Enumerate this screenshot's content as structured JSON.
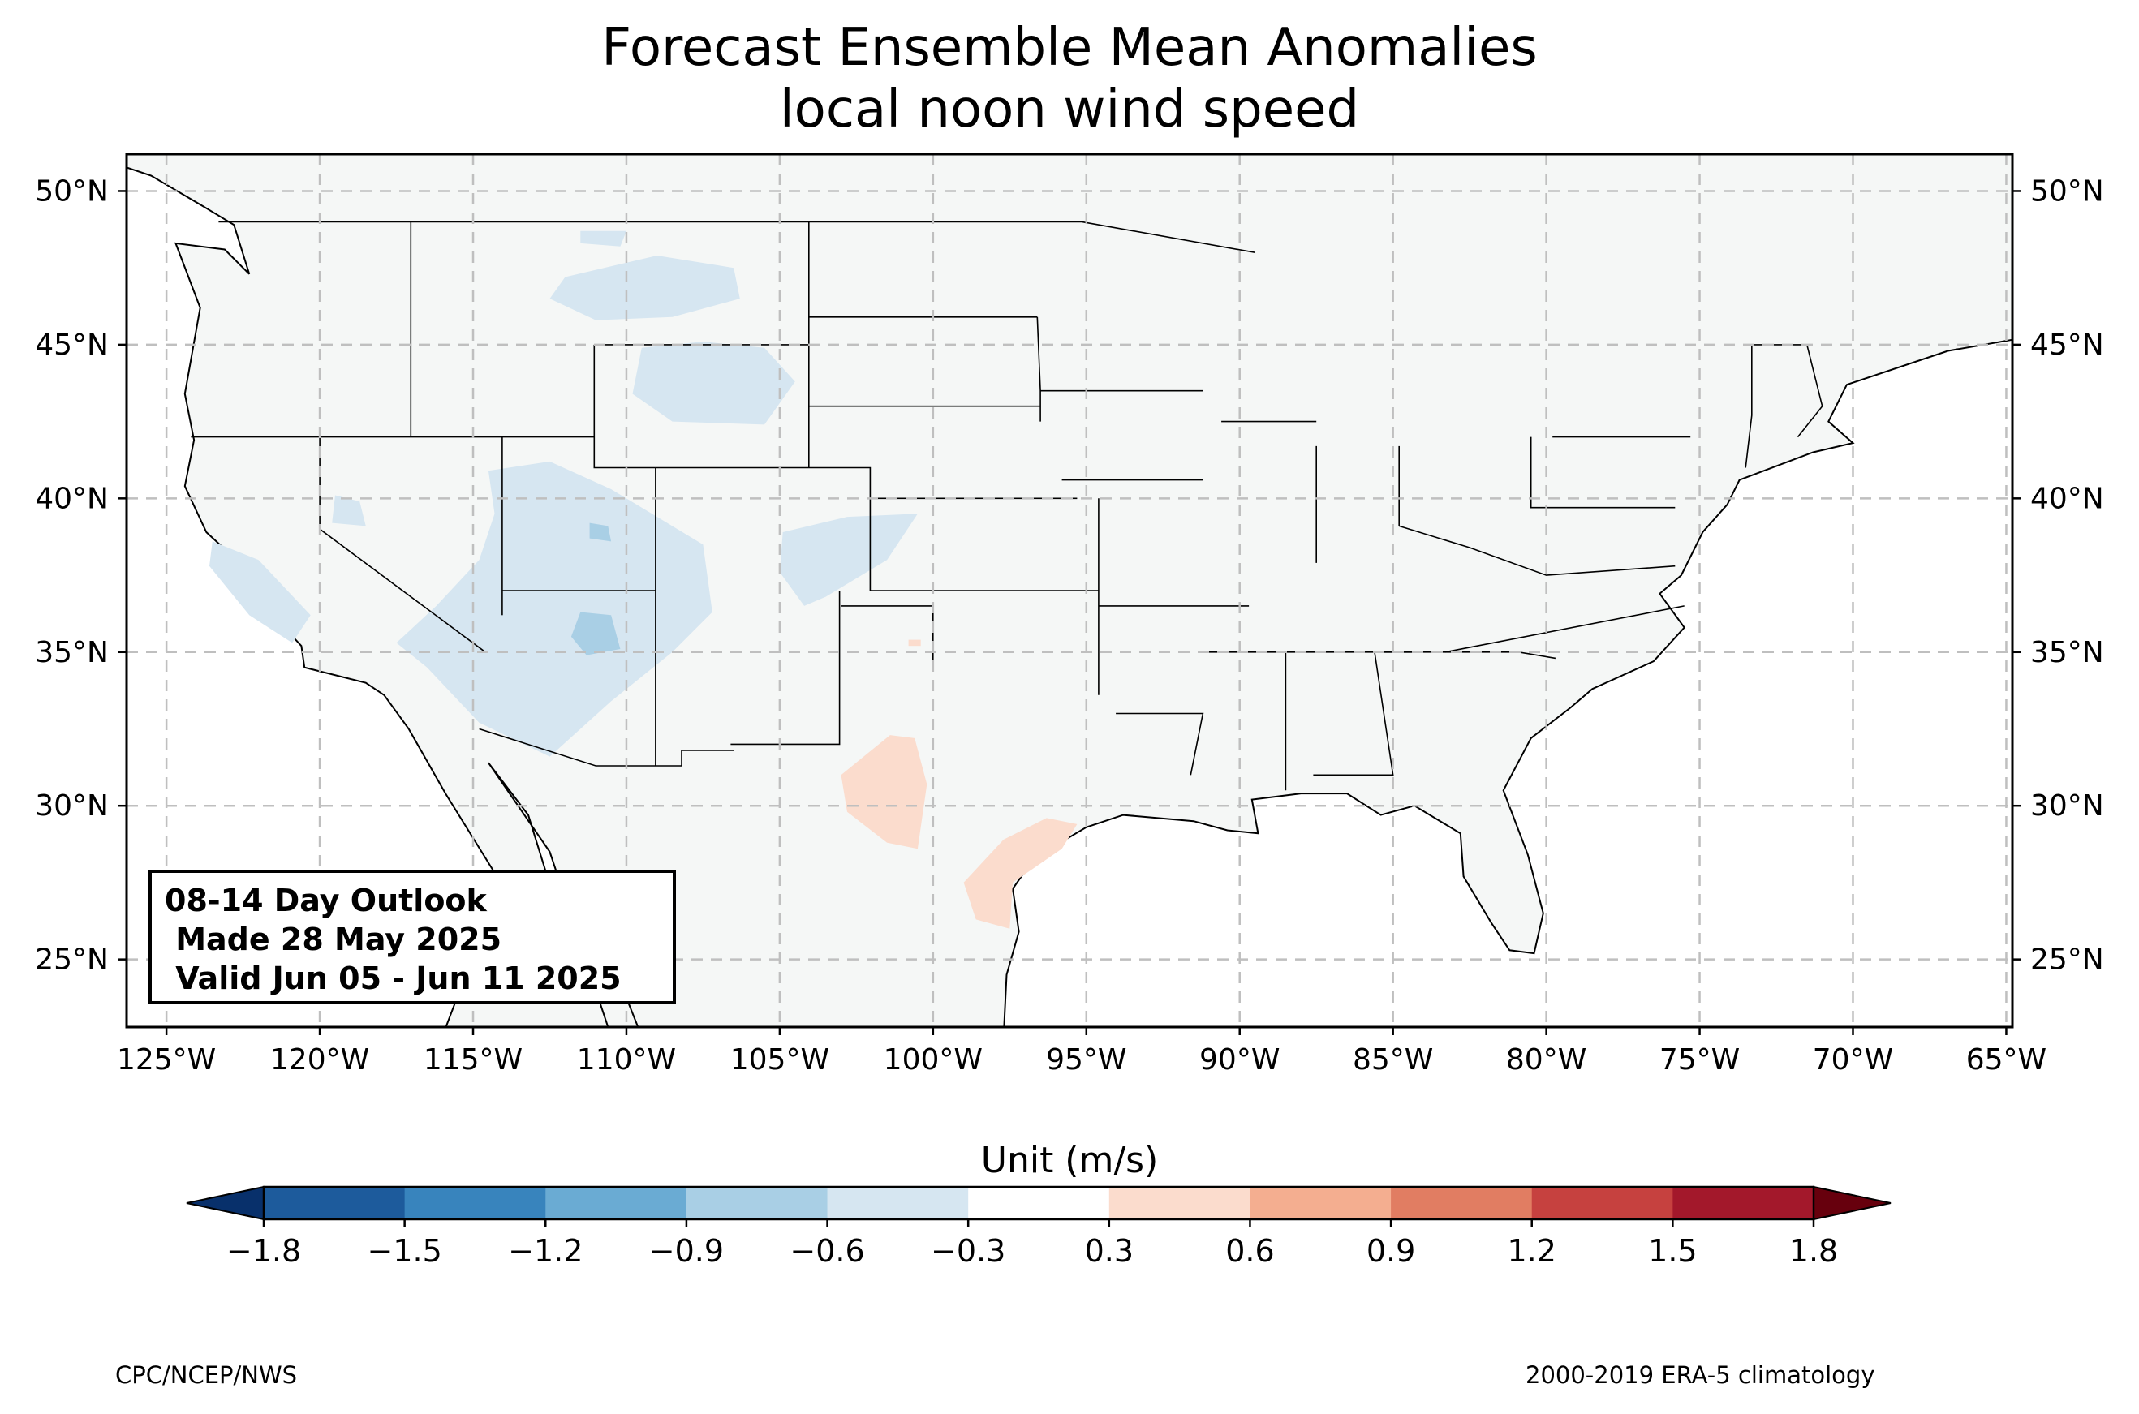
{
  "title": {
    "line1": "Forecast Ensemble Mean Anomalies",
    "line2": "local noon wind speed"
  },
  "map": {
    "projection": "plate-carree",
    "lon_range": [
      -126.3,
      -64.8
    ],
    "lat_range": [
      22.8,
      51.2
    ],
    "grid": "dashed",
    "lon_ticks": [
      {
        "value": -125,
        "label": "125°W"
      },
      {
        "value": -120,
        "label": "120°W"
      },
      {
        "value": -115,
        "label": "115°W"
      },
      {
        "value": -110,
        "label": "110°W"
      },
      {
        "value": -105,
        "label": "105°W"
      },
      {
        "value": -100,
        "label": "100°W"
      },
      {
        "value": -95,
        "label": "95°W"
      },
      {
        "value": -90,
        "label": "90°W"
      },
      {
        "value": -85,
        "label": "85°W"
      },
      {
        "value": -80,
        "label": "80°W"
      },
      {
        "value": -75,
        "label": "75°W"
      },
      {
        "value": -70,
        "label": "70°W"
      },
      {
        "value": -65,
        "label": "65°W"
      }
    ],
    "lat_ticks": [
      {
        "value": 50,
        "label": "50°N"
      },
      {
        "value": 45,
        "label": "45°N"
      },
      {
        "value": 40,
        "label": "40°N"
      },
      {
        "value": 35,
        "label": "35°N"
      },
      {
        "value": 30,
        "label": "30°N"
      },
      {
        "value": 25,
        "label": "25°N"
      }
    ],
    "land_color": "#f5f7f6",
    "ocean_color": "#ffffff",
    "anomaly_regions": [
      {
        "name": "Northern Rockies",
        "bin": "-0.6 to -0.3",
        "color": "#d6e6f1",
        "outline": [
          [
            -112,
            47.2
          ],
          [
            -109,
            47.9
          ],
          [
            -106.5,
            47.5
          ],
          [
            -106.3,
            46.5
          ],
          [
            -108.5,
            45.9
          ],
          [
            -111,
            45.8
          ],
          [
            -112.5,
            46.5
          ]
        ]
      },
      {
        "name": "Montana (north)",
        "bin": "-0.6 to -0.3",
        "color": "#d6e6f1",
        "outline": [
          [
            -111.5,
            48.7
          ],
          [
            -110,
            48.7
          ],
          [
            -110.2,
            48.2
          ],
          [
            -111.5,
            48.3
          ]
        ]
      },
      {
        "name": "Wyoming",
        "bin": "-0.6 to -0.3",
        "color": "#d6e6f1",
        "outline": [
          [
            -109.5,
            44.9
          ],
          [
            -107.5,
            45.1
          ],
          [
            -105.5,
            44.9
          ],
          [
            -104.5,
            43.8
          ],
          [
            -105.5,
            42.4
          ],
          [
            -108.5,
            42.5
          ],
          [
            -109.8,
            43.4
          ]
        ]
      },
      {
        "name": "Great Basin / Four Corners",
        "bin": "-0.6 to -0.3",
        "color": "#d6e6f1",
        "outline": [
          [
            -114.5,
            40.9
          ],
          [
            -112.5,
            41.2
          ],
          [
            -110.5,
            40.3
          ],
          [
            -107.5,
            38.5
          ],
          [
            -107.2,
            36.3
          ],
          [
            -108.5,
            35
          ],
          [
            -110.5,
            33.4
          ],
          [
            -112.5,
            31.6
          ],
          [
            -114.8,
            32.7
          ],
          [
            -116.5,
            34.5
          ],
          [
            -117.5,
            35.3
          ],
          [
            -116.2,
            36.5
          ],
          [
            -114.8,
            38
          ],
          [
            -114.3,
            39.5
          ]
        ]
      },
      {
        "name": "California coast",
        "bin": "-0.6 to -0.3",
        "color": "#d6e6f1",
        "outline": [
          [
            -123.5,
            38.6
          ],
          [
            -122,
            38
          ],
          [
            -120.3,
            36.2
          ],
          [
            -120.9,
            35.3
          ],
          [
            -122.3,
            36.2
          ],
          [
            -123.6,
            37.8
          ]
        ]
      },
      {
        "name": "Nevada west",
        "bin": "-0.6 to -0.3",
        "color": "#d6e6f1",
        "outline": [
          [
            -119.5,
            40.1
          ],
          [
            -118.7,
            39.9
          ],
          [
            -118.5,
            39.1
          ],
          [
            -119.6,
            39.2
          ]
        ]
      },
      {
        "name": "SE Colorado / NE New Mexico",
        "bin": "-0.6 to -0.3",
        "color": "#d6e6f1",
        "outline": [
          [
            -104.9,
            38.9
          ],
          [
            -102.8,
            39.4
          ],
          [
            -100.5,
            39.5
          ],
          [
            -101.5,
            38
          ],
          [
            -103.5,
            36.8
          ],
          [
            -104.2,
            36.5
          ],
          [
            -105,
            37.6
          ]
        ]
      },
      {
        "name": "Utah / Arizona core",
        "bin": "-0.9 to -0.6",
        "color": "#a9cfe5",
        "outline": [
          [
            -111.5,
            36.3
          ],
          [
            -110.5,
            36.2
          ],
          [
            -110.2,
            35.1
          ],
          [
            -111.3,
            34.9
          ],
          [
            -111.8,
            35.5
          ]
        ]
      },
      {
        "name": "Utah central",
        "bin": "-0.9 to -0.6",
        "color": "#a9cfe5",
        "outline": [
          [
            -111.2,
            39.2
          ],
          [
            -110.6,
            39.1
          ],
          [
            -110.5,
            38.6
          ],
          [
            -111.2,
            38.7
          ]
        ]
      },
      {
        "name": "West Texas",
        "bin": "0.3 to 0.6",
        "color": "#fbdccd",
        "outline": [
          [
            -101.4,
            32.3
          ],
          [
            -100.6,
            32.2
          ],
          [
            -100.2,
            30.7
          ],
          [
            -100.5,
            28.6
          ],
          [
            -101.5,
            28.8
          ],
          [
            -102.8,
            29.8
          ],
          [
            -103,
            31
          ]
        ]
      },
      {
        "name": "South Texas coast",
        "bin": "0.3 to 0.6",
        "color": "#fbdccd",
        "outline": [
          [
            -96.3,
            29.6
          ],
          [
            -95.3,
            29.4
          ],
          [
            -95.8,
            28.6
          ],
          [
            -97.4,
            27.5
          ],
          [
            -97.5,
            26
          ],
          [
            -98.6,
            26.3
          ],
          [
            -99,
            27.5
          ],
          [
            -97.7,
            28.9
          ]
        ]
      },
      {
        "name": "Texas panhandle dot",
        "bin": "0.3 to 0.6",
        "color": "#fbdccd",
        "outline": [
          [
            -100.8,
            35.4
          ],
          [
            -100.4,
            35.4
          ],
          [
            -100.4,
            35.2
          ],
          [
            -100.8,
            35.2
          ]
        ]
      }
    ]
  },
  "outlook_box": {
    "line1": "08-14 Day Outlook",
    "line2": " Made 28 May 2025",
    "line3": " Valid Jun 05 - Jun 11 2025"
  },
  "colorbar": {
    "title": "Unit (m/s)",
    "ticks": [
      "−1.8",
      "−1.5",
      "−1.2",
      "−0.9",
      "−0.6",
      "−0.3",
      "0.3",
      "0.6",
      "0.9",
      "1.2",
      "1.5",
      "1.8"
    ],
    "colors": [
      "#1d5b9c",
      "#3884bd",
      "#6aabd3",
      "#a9cfe5",
      "#d6e6f1",
      "#ffffff",
      "#fbdccd",
      "#f4ae90",
      "#e17d62",
      "#c6413f",
      "#a3182b"
    ],
    "extend_low_color": "#08306b",
    "extend_high_color": "#67000d"
  },
  "footer": {
    "left": "CPC/NCEP/NWS",
    "right": "2000-2019 ERA-5 climatology"
  }
}
